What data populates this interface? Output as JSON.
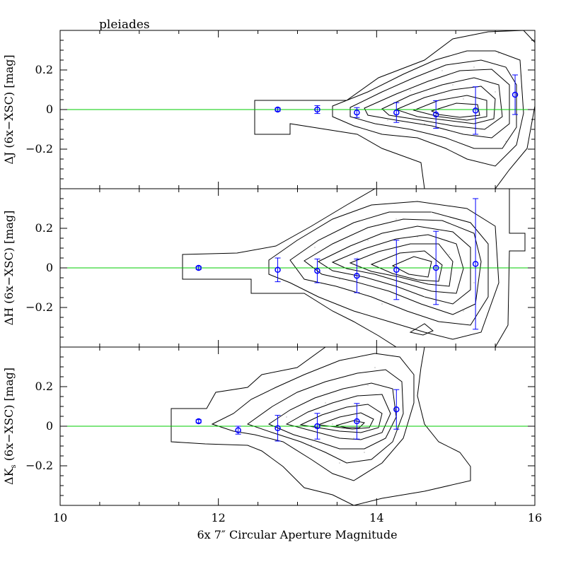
{
  "chart_data": {
    "type": "scatter",
    "title": "pleiades",
    "xlabel": "6x 7″ Circular Aperture Magnitude",
    "xlim": [
      10,
      16
    ],
    "x_ticks": [
      10,
      12,
      14,
      16
    ],
    "x_tick_labels": [
      "10",
      "12",
      "14",
      "16"
    ],
    "grid": false,
    "reference_line": {
      "y": 0,
      "color": "#00cc00"
    },
    "point_color": "#0000ff",
    "contour_color": "#000000",
    "panels": [
      {
        "ylabel_parts": [
          "ΔJ (6x−XSC) [mag]"
        ],
        "ylim": [
          -0.4,
          0.4
        ],
        "y_ticks": [
          0.2,
          0,
          -0.2
        ],
        "y_tick_labels": [
          "0.2",
          "0",
          "−0.2"
        ],
        "points": [
          {
            "x": 12.75,
            "y": 0.0,
            "err": 0.008
          },
          {
            "x": 13.25,
            "y": 0.0,
            "err": 0.02
          },
          {
            "x": 13.75,
            "y": -0.015,
            "err": 0.025
          },
          {
            "x": 14.25,
            "y": -0.015,
            "err": 0.05
          },
          {
            "x": 14.75,
            "y": -0.025,
            "err": 0.07
          },
          {
            "x": 15.25,
            "y": -0.005,
            "err": 0.12
          },
          {
            "x": 15.75,
            "y": 0.075,
            "err": 0.1
          }
        ]
      },
      {
        "ylabel_parts": [
          "ΔH (6x−XSC) [mag]"
        ],
        "ylim": [
          -0.4,
          0.4
        ],
        "y_ticks": [
          0.2,
          0,
          -0.2
        ],
        "y_tick_labels": [
          "0.2",
          "0",
          "−0.2"
        ],
        "points": [
          {
            "x": 11.75,
            "y": 0.0,
            "err": 0.008
          },
          {
            "x": 12.75,
            "y": -0.01,
            "err": 0.06
          },
          {
            "x": 13.25,
            "y": -0.015,
            "err": 0.06
          },
          {
            "x": 13.75,
            "y": -0.04,
            "err": 0.085
          },
          {
            "x": 14.25,
            "y": -0.01,
            "err": 0.15
          },
          {
            "x": 14.75,
            "y": 0.0,
            "err": 0.185
          },
          {
            "x": 15.25,
            "y": 0.02,
            "err": 0.33
          }
        ]
      },
      {
        "ylabel_parts": [
          "ΔK",
          "s",
          " (6x−XSC) [mag]"
        ],
        "ylim": [
          -0.4,
          0.4
        ],
        "y_ticks": [
          0.2,
          0,
          -0.2
        ],
        "y_tick_labels": [
          "0.2",
          "0",
          "−0.2"
        ],
        "points": [
          {
            "x": 11.75,
            "y": 0.025,
            "err": 0.008
          },
          {
            "x": 12.25,
            "y": -0.02,
            "err": 0.02
          },
          {
            "x": 12.75,
            "y": -0.01,
            "err": 0.065
          },
          {
            "x": 13.25,
            "y": 0.0,
            "err": 0.065
          },
          {
            "x": 13.75,
            "y": 0.025,
            "err": 0.09
          },
          {
            "x": 14.25,
            "y": 0.085,
            "err": 0.1
          }
        ]
      }
    ]
  }
}
